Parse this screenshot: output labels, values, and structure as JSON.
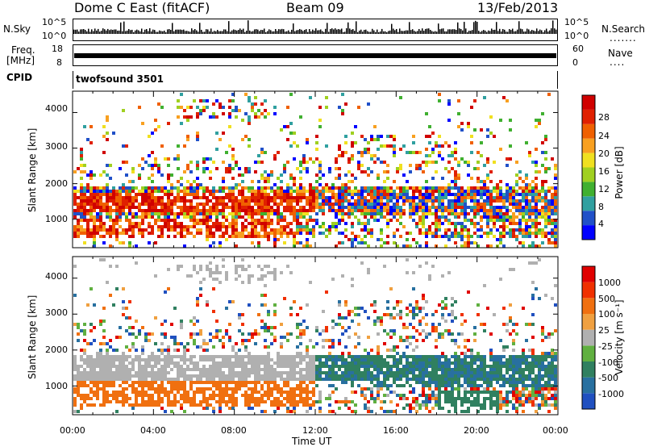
{
  "header": {
    "title": "Dome C East (fitACF)",
    "beam": "Beam 09",
    "date": "13/Feb/2013"
  },
  "top_panels": {
    "nsky_label": "N.Sky",
    "nsearch_label": "N.Search",
    "nsky_ticks": [
      "10^5",
      "10^0"
    ],
    "nsky_right_ticks": [
      "10^5",
      "10^0"
    ],
    "freq_label": "Freq.",
    "freq_unit": "[MHz]",
    "freq_ticks": [
      "18",
      "8"
    ],
    "nave_label": "Nave",
    "nave_ticks": [
      "60",
      "0"
    ],
    "cpid_label": "CPID",
    "cpid_value": "twofsound 3501"
  },
  "chart_data": [
    {
      "type": "heatmap",
      "name": "power",
      "ylabel": "Slant Range [km]",
      "yticks": [
        "4000",
        "3000",
        "2000",
        "1000"
      ],
      "ylim": [
        200,
        4600
      ],
      "xlim": [
        0,
        24
      ],
      "colorbar_label": "Power [dB]",
      "colorbar_ticks": [
        "28",
        "24",
        "20",
        "16",
        "12",
        "8",
        "4"
      ],
      "colors": [
        "#0000ff",
        "#2050c8",
        "#30a0a0",
        "#40b030",
        "#a0d020",
        "#f0e020",
        "#f8a020",
        "#f06000",
        "#e02000",
        "#d00000"
      ]
    },
    {
      "type": "heatmap",
      "name": "velocity",
      "ylabel": "Slant Range [km]",
      "yticks": [
        "4000",
        "3000",
        "2000",
        "1000"
      ],
      "ylim": [
        200,
        4600
      ],
      "xlim": [
        0,
        24
      ],
      "xticks": [
        "00:00",
        "04:00",
        "08:00",
        "12:00",
        "16:00",
        "20:00",
        "00:00"
      ],
      "xlabel": "Time UT",
      "colorbar_label": "Velocity [m s⁻¹]",
      "colorbar_ticks": [
        "1000",
        "500",
        "100",
        "25",
        "-25",
        "-100",
        "-500",
        "-1000"
      ],
      "colors": [
        "#2050c0",
        "#2870a0",
        "#308060",
        "#60b040",
        "#b0b0b0",
        "#f0a040",
        "#f07010",
        "#f03000",
        "#e00000"
      ]
    }
  ]
}
